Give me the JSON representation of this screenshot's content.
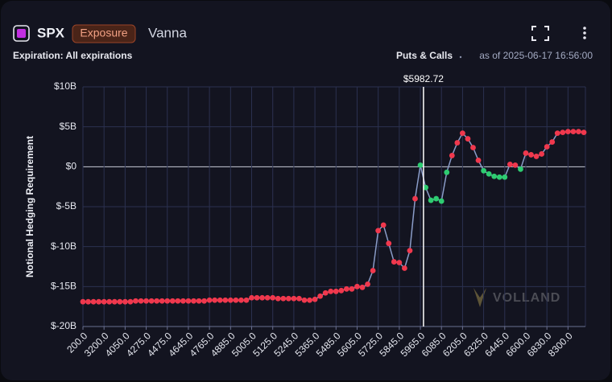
{
  "header": {
    "symbol": "SPX",
    "badge": "Exposure",
    "title": "Vanna",
    "expiration": "Expiration: All expirations",
    "mode": "Puts & Calls",
    "timestamp": "as of 2025-06-17 16:56:00",
    "watermark": "VOLLAND"
  },
  "chart_data": {
    "type": "line",
    "y_label": "Notional Hedging Requirement",
    "categories": [
      "200.0",
      null,
      null,
      null,
      "3200.0",
      null,
      null,
      null,
      "4050.0",
      null,
      null,
      null,
      "4275.0",
      null,
      null,
      null,
      "4475.0",
      null,
      null,
      null,
      "4645.0",
      null,
      null,
      null,
      "4765.0",
      null,
      null,
      null,
      "4885.0",
      null,
      null,
      null,
      "5005.0",
      null,
      null,
      null,
      "5125.0",
      null,
      null,
      null,
      "5245.0",
      null,
      null,
      null,
      "5365.0",
      null,
      null,
      null,
      "5485.0",
      null,
      null,
      null,
      "5605.0",
      null,
      null,
      null,
      "5725.0",
      null,
      null,
      null,
      "5845.0",
      null,
      null,
      null,
      "5965.0",
      null,
      null,
      null,
      "6085.0",
      null,
      null,
      null,
      "6205.0",
      null,
      null,
      null,
      "6325.0",
      null,
      null,
      null,
      "6445.0",
      null,
      null,
      null,
      "6600.0",
      null,
      null,
      null,
      "6830.0",
      null,
      null,
      null,
      "8300.0",
      null,
      null,
      null
    ],
    "series": [
      {
        "color": "#8a9cc8",
        "values": [
          -16.9,
          -16.9,
          -16.9,
          -16.9,
          -16.9,
          -16.9,
          -16.9,
          -16.9,
          -16.9,
          -16.9,
          -16.8,
          -16.8,
          -16.8,
          -16.8,
          -16.8,
          -16.8,
          -16.8,
          -16.8,
          -16.8,
          -16.8,
          -16.8,
          -16.8,
          -16.8,
          -16.8,
          -16.7,
          -16.7,
          -16.7,
          -16.7,
          -16.7,
          -16.7,
          -16.7,
          -16.7,
          -16.4,
          -16.4,
          -16.4,
          -16.4,
          -16.4,
          -16.5,
          -16.5,
          -16.5,
          -16.5,
          -16.5,
          -16.7,
          -16.7,
          -16.6,
          -16.2,
          -15.8,
          -15.6,
          -15.6,
          -15.5,
          -15.3,
          -15.3,
          -15.0,
          -15.1,
          -14.7,
          -13.0,
          -8.0,
          -7.3,
          -9.6,
          -11.9,
          -12.0,
          -12.7,
          -10.5,
          -4.0,
          0.2,
          -2.6,
          -4.2,
          -4.0,
          -4.3,
          -0.7,
          1.4,
          3.0,
          4.2,
          3.5,
          2.4,
          0.8,
          -0.5,
          -0.9,
          -1.2,
          -1.3,
          -1.3,
          0.3,
          0.2,
          -0.3,
          1.7,
          1.5,
          1.3,
          1.6,
          2.5,
          3.1,
          4.2,
          4.3,
          4.4,
          4.4,
          4.4,
          4.3
        ],
        "marker_colors": [
          "#f0384d",
          "#f0384d",
          "#f0384d",
          "#f0384d",
          "#f0384d",
          "#f0384d",
          "#f0384d",
          "#f0384d",
          "#f0384d",
          "#f0384d",
          "#f0384d",
          "#f0384d",
          "#f0384d",
          "#f0384d",
          "#f0384d",
          "#f0384d",
          "#f0384d",
          "#f0384d",
          "#f0384d",
          "#f0384d",
          "#f0384d",
          "#f0384d",
          "#f0384d",
          "#f0384d",
          "#f0384d",
          "#f0384d",
          "#f0384d",
          "#f0384d",
          "#f0384d",
          "#f0384d",
          "#f0384d",
          "#f0384d",
          "#f0384d",
          "#f0384d",
          "#f0384d",
          "#f0384d",
          "#f0384d",
          "#f0384d",
          "#f0384d",
          "#f0384d",
          "#f0384d",
          "#f0384d",
          "#f0384d",
          "#f0384d",
          "#f0384d",
          "#f0384d",
          "#f0384d",
          "#f0384d",
          "#f0384d",
          "#f0384d",
          "#f0384d",
          "#f0384d",
          "#f0384d",
          "#f0384d",
          "#f0384d",
          "#f0384d",
          "#f0384d",
          "#f0384d",
          "#f0384d",
          "#f0384d",
          "#f0384d",
          "#f0384d",
          "#f0384d",
          "#f0384d",
          "#2ecc71",
          "#2ecc71",
          "#2ecc71",
          "#2ecc71",
          "#2ecc71",
          "#2ecc71",
          "#f0384d",
          "#f0384d",
          "#f0384d",
          "#f0384d",
          "#f0384d",
          "#f0384d",
          "#2ecc71",
          "#2ecc71",
          "#2ecc71",
          "#2ecc71",
          "#2ecc71",
          "#f0384d",
          "#f0384d",
          "#2ecc71",
          "#f0384d",
          "#f0384d",
          "#f0384d",
          "#f0384d",
          "#f0384d",
          "#f0384d",
          "#f0384d",
          "#f0384d",
          "#f0384d",
          "#f0384d",
          "#f0384d",
          "#f0384d"
        ]
      }
    ],
    "ylim": [
      -20,
      10
    ],
    "yticks": [
      {
        "value": -20,
        "label": "$-20B"
      },
      {
        "value": -15,
        "label": "$-15B"
      },
      {
        "value": -10,
        "label": "$-10B"
      },
      {
        "value": -5,
        "label": "$-5B"
      },
      {
        "value": 0,
        "label": "$0"
      },
      {
        "value": 5,
        "label": "$5B"
      },
      {
        "value": 10,
        "label": "$10B"
      }
    ],
    "grid": true,
    "spot": {
      "value": 5982.72,
      "label": "$5982.72"
    }
  }
}
